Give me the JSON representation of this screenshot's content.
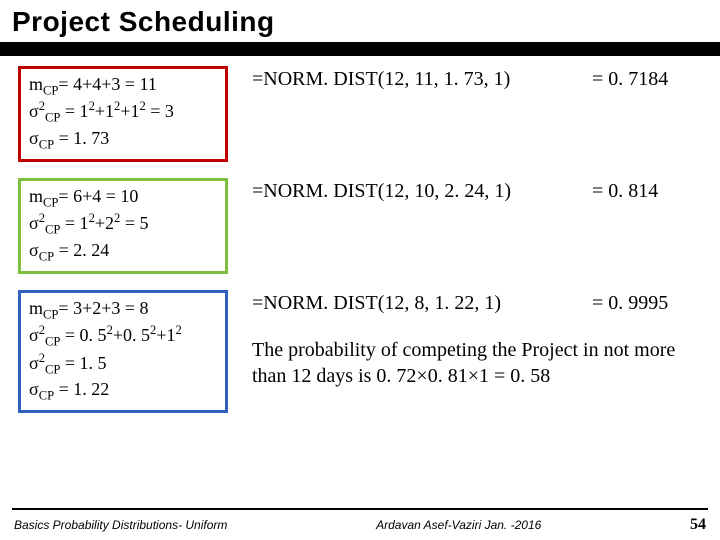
{
  "title": "Project Scheduling",
  "rows": [
    {
      "box_color": "#c00000",
      "m_line": "m<sub>CP</sub>=  4+4+3 = 11",
      "s2_line": "σ<sup>2</sup><sub>CP</sub> = 1<sup>2</sup>+1<sup>2</sup>+1<sup>2</sup> = 3",
      "s_line": "σ<sub>CP</sub> = 1. 73",
      "formula": "=NORM. DIST(12, 11, 1. 73, 1)",
      "result": "= 0. 7184"
    },
    {
      "box_color": "#7fbf3f",
      "m_line": "m<sub>CP</sub>=  6+4 = 10",
      "s2_line": "σ<sup>2</sup><sub>CP</sub> = 1<sup>2</sup>+2<sup>2</sup> = 5",
      "s_line": "σ<sub>CP</sub> = 2. 24",
      "formula": "=NORM. DIST(12, 10, 2. 24, 1)",
      "result": "= 0. 814"
    },
    {
      "box_color": "#2f5fbf",
      "m_line": "m<sub>CP</sub>=  3+2+3 = 8",
      "s2_line": "σ<sup>2</sup><sub>CP</sub> = 0. 5<sup>2</sup>+0. 5<sup>2</sup>+1<sup>2</sup>",
      "s2b_line": "σ<sup>2</sup><sub>CP</sub>  = 1. 5",
      "s_line": "σ<sub>CP</sub> = 1. 22",
      "formula": "=NORM. DIST(12, 8, 1. 22, 1)",
      "result": "= 0. 9995",
      "explain": "The probability of competing the Project in not more than 12 days is  0. 72×0. 81×1 = 0. 58"
    }
  ],
  "footer": {
    "left": "Basics Probability Distributions- Uniform",
    "mid": "Ardavan Asef-Vaziri     Jan. -2016",
    "page": "54"
  }
}
